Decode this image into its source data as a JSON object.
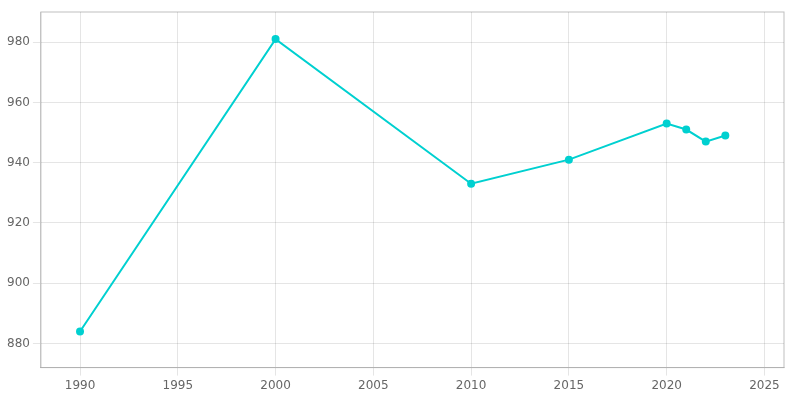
{
  "chart_data": {
    "type": "line",
    "x": [
      1990,
      2000,
      2010,
      2015,
      2020,
      2021,
      2022,
      2023
    ],
    "values": [
      884,
      981,
      933,
      941,
      953,
      951,
      947,
      949
    ],
    "color": "#00d0d0",
    "marker": "circle",
    "xlim": [
      1988,
      2026
    ],
    "xticks": [
      1990,
      1995,
      2000,
      2005,
      2010,
      2015,
      2020,
      2025
    ],
    "ylim": [
      872,
      990
    ],
    "yticks": [
      880,
      900,
      920,
      940,
      960,
      980
    ],
    "grid": true
  }
}
